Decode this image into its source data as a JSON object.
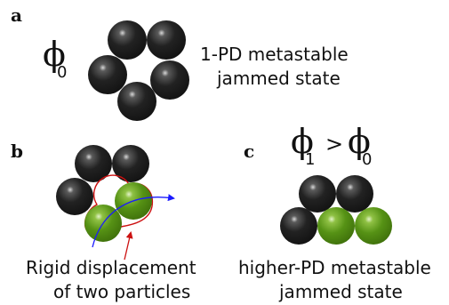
{
  "panels": {
    "a": {
      "letter": "a",
      "symbol": "ϕ",
      "subscript": "0",
      "caption_line1": "1-PD metastable",
      "caption_line2": "jammed state"
    },
    "b": {
      "letter": "b",
      "caption_line1": "Rigid displacement",
      "caption_line2": "of two particles"
    },
    "c": {
      "letter": "c",
      "symbol_left": "ϕ",
      "subscript_left": "1",
      "relation": ">",
      "symbol_right": "ϕ",
      "subscript_right": "0",
      "caption_line1": "higher-PD metastable",
      "caption_line2": "jammed state"
    }
  },
  "colors": {
    "black_particle": "#1a1a1a",
    "green_particle": "#4e8a10",
    "outline_red": "#cc1111",
    "arrow_blue": "#1a1aff",
    "pointer_red": "#cc1111"
  }
}
